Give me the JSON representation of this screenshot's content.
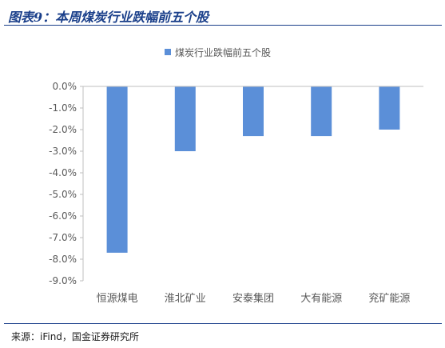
{
  "figure": {
    "title": "图表9：本周煤炭行业跌幅前五个股",
    "source": "来源：iFind，国金证券研究所"
  },
  "colors": {
    "bar": "#5b8fd8",
    "title": "#1a3f8a",
    "axis": "#bfbfbf",
    "text": "#595959"
  },
  "chart_data": {
    "type": "bar",
    "title": "",
    "xlabel": "",
    "ylabel": "",
    "categories": [
      "恒源煤电",
      "淮北矿业",
      "安泰集团",
      "大有能源",
      "兖矿能源"
    ],
    "series": [
      {
        "name": "煤炭行业跌幅前五个股",
        "values": [
          -7.7,
          -3.0,
          -2.3,
          -2.3,
          -2.0
        ]
      }
    ],
    "ylim": [
      -9.0,
      0.0
    ],
    "yticks": [
      0,
      -1,
      -2,
      -3,
      -4,
      -5,
      -6,
      -7,
      -8,
      -9
    ],
    "ytick_labels": [
      "0.0%",
      "-1.0%",
      "-2.0%",
      "-3.0%",
      "-4.0%",
      "-5.0%",
      "-6.0%",
      "-7.0%",
      "-8.0%",
      "-9.0%"
    ],
    "grid": false,
    "legend_position": "top-center"
  }
}
